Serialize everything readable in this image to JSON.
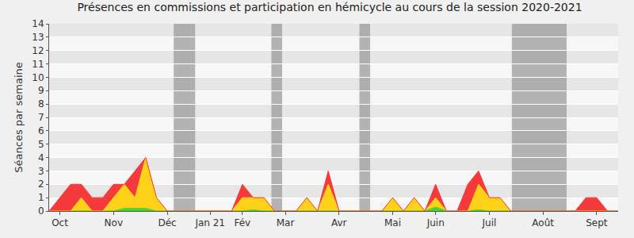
{
  "chart_data": {
    "type": "area",
    "title": "Présences en commissions et participation en hémicycle au cours de la session 2020-2021",
    "y_label": "Séances par semaine",
    "categories": [
      null,
      "Oct",
      null,
      null,
      null,
      null,
      "Nov",
      null,
      null,
      null,
      null,
      "Déc",
      null,
      null,
      null,
      "Jan 21",
      null,
      null,
      "Fév",
      null,
      null,
      null,
      "Mar",
      null,
      null,
      null,
      null,
      "Avr",
      null,
      null,
      null,
      null,
      "Mai",
      null,
      null,
      null,
      "Juin",
      null,
      null,
      null,
      null,
      "Juil",
      null,
      null,
      null,
      null,
      "Août",
      null,
      null,
      null,
      null,
      "Sept",
      null,
      null
    ],
    "series": [
      {
        "color": "#4fd12b",
        "values": [
          0,
          0,
          0,
          0,
          0,
          0,
          0,
          0.2,
          0.2,
          0.2,
          0,
          0,
          0,
          0,
          0,
          0,
          0,
          0,
          0,
          0.1,
          0,
          0,
          0,
          0,
          0,
          0,
          0,
          0,
          0,
          0,
          0,
          0,
          0,
          0,
          0,
          0,
          0.3,
          0,
          0,
          0,
          0.1,
          0,
          0,
          0,
          0,
          0,
          0,
          0,
          0,
          0,
          0,
          0,
          0,
          0
        ]
      },
      {
        "color": "#ffd219",
        "values": [
          0,
          0,
          0,
          1,
          0,
          0,
          1,
          1.8,
          0.8,
          3.8,
          1,
          0,
          0,
          0,
          0,
          0,
          0,
          0,
          1,
          0.9,
          1,
          0,
          0,
          0,
          1,
          0,
          2,
          0,
          0,
          0,
          0,
          0,
          1,
          0,
          1,
          0,
          0.7,
          0,
          0,
          0,
          1.9,
          1,
          1,
          0,
          0,
          0,
          0,
          0,
          0,
          0,
          0,
          0,
          0,
          0
        ]
      },
      {
        "color": "#f43a3a",
        "values": [
          0,
          1,
          2,
          1,
          1,
          1,
          1,
          0,
          2,
          0,
          0,
          0,
          0,
          0,
          0,
          0,
          0,
          0,
          1,
          0,
          0,
          0,
          0,
          0,
          0,
          0,
          1,
          0,
          0,
          0,
          0,
          0,
          0,
          0,
          0,
          0,
          1,
          0,
          0,
          2,
          1,
          0,
          0,
          0,
          0,
          0,
          0,
          0,
          0,
          0,
          1,
          1,
          0,
          0
        ]
      }
    ],
    "shaded": [
      [
        11.6,
        13.6
      ],
      [
        20.7,
        21.7
      ],
      [
        28.9,
        29.9
      ],
      [
        43.1,
        48.2
      ]
    ],
    "ylim": [
      0,
      14
    ],
    "yticks": [
      0,
      1,
      2,
      3,
      4,
      5,
      6,
      7,
      8,
      9,
      10,
      11,
      12,
      13,
      14
    ],
    "stacked": true,
    "grid": true
  }
}
